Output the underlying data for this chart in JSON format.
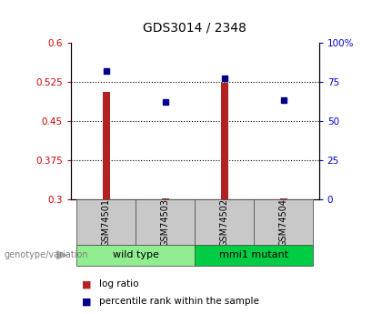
{
  "title": "GDS3014 / 2348",
  "samples": [
    "GSM74501",
    "GSM74503",
    "GSM74502",
    "GSM74504"
  ],
  "log_ratio": [
    0.505,
    0.302,
    0.523,
    0.302
  ],
  "percentile": [
    82,
    62,
    77,
    63
  ],
  "ylim_left": [
    0.3,
    0.6
  ],
  "ylim_right": [
    0,
    100
  ],
  "yticks_left": [
    0.3,
    0.375,
    0.45,
    0.525,
    0.6
  ],
  "ytick_labels_left": [
    "0.3",
    "0.375",
    "0.45",
    "0.525",
    "0.6"
  ],
  "yticks_right": [
    0,
    25,
    50,
    75,
    100
  ],
  "ytick_labels_right": [
    "0",
    "25",
    "50",
    "75",
    "100%"
  ],
  "dotted_yticks": [
    0.375,
    0.45,
    0.525
  ],
  "bar_color": "#b22222",
  "point_color": "#00008b",
  "bar_width": 0.12,
  "groups": [
    {
      "label": "wild type",
      "samples": [
        "GSM74501",
        "GSM74503"
      ],
      "color": "#90EE90"
    },
    {
      "label": "mmi1 mutant",
      "samples": [
        "GSM74502",
        "GSM74504"
      ],
      "color": "#00cc44"
    }
  ],
  "legend_items": [
    {
      "label": "log ratio",
      "color": "#b22222"
    },
    {
      "label": "percentile rank within the sample",
      "color": "#00008b"
    }
  ],
  "genotype_label": "genotype/variation",
  "sample_bg_color": "#c8c8c8",
  "background_color": "#ffffff",
  "plot_bg_color": "#ffffff",
  "axis_label_color_left": "#cc0000",
  "axis_label_color_right": "#0000cc"
}
